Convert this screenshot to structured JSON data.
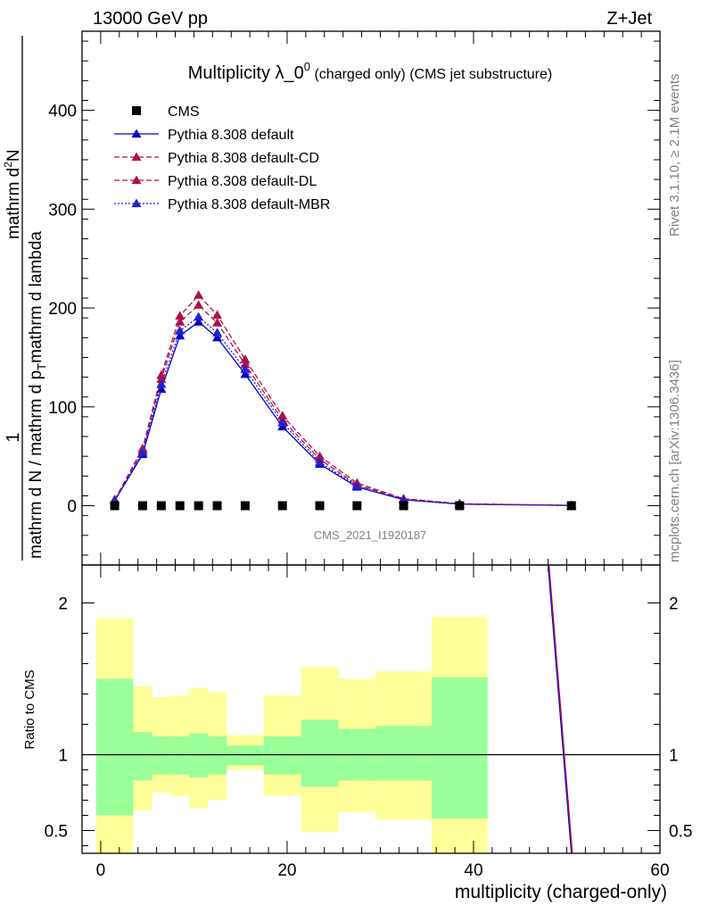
{
  "header": {
    "left": "13000 GeV pp",
    "right": "Z+Jet"
  },
  "side_labels": {
    "rivet": "Rivet 3.1.10, ≥ 2.1M events",
    "mcplots": "mcplots.cern.ch [arXiv:1306.3436]"
  },
  "watermark": "CMS_2021_I1920187",
  "chart_data": [
    {
      "type": "line",
      "title": "Multiplicity λ_0",
      "title_sup": "0",
      "title_extra": " (charged only) (CMS jet substructure)",
      "ylabel_num": "1",
      "ylabel_main": "mathrm d N / mathrm d p",
      "ylabel_t": "T",
      "ylabel_tail": "mathrm d lambda",
      "ylabel_sub_top": "mathrm d",
      "ylabel_sub_sup": "2",
      "ylabel_sub_n": "N",
      "xlim": [
        -2,
        60
      ],
      "ylim": [
        -60,
        480
      ],
      "yticks": [
        0,
        100,
        200,
        300,
        400
      ],
      "legend_position": "top-left",
      "series": [
        {
          "name": "CMS",
          "color": "#000000",
          "marker": "square",
          "x": [
            1.5,
            4.5,
            6.5,
            8.5,
            10.5,
            12.5,
            15.5,
            19.5,
            23.5,
            27.5,
            32.5,
            38.5,
            50.5
          ],
          "y": [
            0,
            0,
            0,
            0,
            0,
            0,
            0,
            0,
            0,
            0,
            0,
            0,
            0
          ]
        },
        {
          "name": "Pythia 8.308 default",
          "color": "#0000cc",
          "marker": "triangle",
          "dash": "",
          "x": [
            1.5,
            4.5,
            6.5,
            8.5,
            10.5,
            12.5,
            15.5,
            19.5,
            23.5,
            27.5,
            32.5,
            38.5,
            50.5
          ],
          "y": [
            5,
            52,
            118,
            172,
            186,
            170,
            133,
            80,
            42,
            19,
            6,
            1.5,
            0.3
          ]
        },
        {
          "name": "Pythia 8.308 default-CD",
          "color": "#b0104a",
          "marker": "triangle",
          "dash": "6,3",
          "x": [
            1.5,
            4.5,
            6.5,
            8.5,
            10.5,
            12.5,
            15.5,
            19.5,
            23.5,
            27.5,
            32.5,
            38.5,
            50.5
          ],
          "y": [
            6,
            58,
            132,
            192,
            213,
            193,
            148,
            91,
            50,
            23,
            7,
            2,
            0.3
          ]
        },
        {
          "name": "Pythia 8.308 default-DL",
          "color": "#b0104a",
          "marker": "triangle",
          "dash": "6,3",
          "x": [
            1.5,
            4.5,
            6.5,
            8.5,
            10.5,
            12.5,
            15.5,
            19.5,
            23.5,
            27.5,
            32.5,
            38.5,
            50.5
          ],
          "y": [
            6,
            56,
            128,
            186,
            203,
            185,
            143,
            87,
            47,
            21,
            7,
            2,
            0.3
          ]
        },
        {
          "name": "Pythia 8.308 default-MBR",
          "color": "#2222cc",
          "marker": "triangle",
          "dash": "2,2",
          "x": [
            1.5,
            4.5,
            6.5,
            8.5,
            10.5,
            12.5,
            15.5,
            19.5,
            23.5,
            27.5,
            32.5,
            38.5,
            50.5
          ],
          "y": [
            5,
            54,
            123,
            177,
            191,
            175,
            138,
            84,
            44,
            20,
            6,
            1.7,
            0.3
          ]
        }
      ]
    },
    {
      "type": "area",
      "ylabel": "Ratio to CMS",
      "xlabel": "multiplicity (charged-only)",
      "xlim": [
        -2,
        60
      ],
      "ylim": [
        0.35,
        2.25
      ],
      "xticks": [
        0,
        20,
        40,
        60
      ],
      "yticks": [
        0.5,
        1,
        2
      ],
      "reference": 1,
      "band_colors": {
        "outer": "#ffff99",
        "inner": "#99ff99"
      },
      "bins": [
        {
          "lo": -0.5,
          "hi": 3.5,
          "inner": [
            0.6,
            1.5
          ],
          "outer": [
            0.35,
            1.9
          ]
        },
        {
          "lo": 3.5,
          "hi": 5.5,
          "inner": [
            0.83,
            1.15
          ],
          "outer": [
            0.63,
            1.45
          ]
        },
        {
          "lo": 5.5,
          "hi": 7.5,
          "inner": [
            0.87,
            1.12
          ],
          "outer": [
            0.75,
            1.38
          ]
        },
        {
          "lo": 7.5,
          "hi": 9.5,
          "inner": [
            0.87,
            1.12
          ],
          "outer": [
            0.73,
            1.39
          ]
        },
        {
          "lo": 9.5,
          "hi": 11.5,
          "inner": [
            0.85,
            1.14
          ],
          "outer": [
            0.65,
            1.44
          ]
        },
        {
          "lo": 11.5,
          "hi": 13.5,
          "inner": [
            0.87,
            1.12
          ],
          "outer": [
            0.7,
            1.41
          ]
        },
        {
          "lo": 13.5,
          "hi": 17.5,
          "inner": [
            0.93,
            1.06
          ],
          "outer": [
            0.9,
            1.13
          ]
        },
        {
          "lo": 17.5,
          "hi": 21.5,
          "inner": [
            0.87,
            1.12
          ],
          "outer": [
            0.73,
            1.39
          ]
        },
        {
          "lo": 21.5,
          "hi": 25.5,
          "inner": [
            0.79,
            1.23
          ],
          "outer": [
            0.49,
            1.58
          ]
        },
        {
          "lo": 25.5,
          "hi": 29.5,
          "inner": [
            0.83,
            1.17
          ],
          "outer": [
            0.62,
            1.5
          ]
        },
        {
          "lo": 29.5,
          "hi": 35.5,
          "inner": [
            0.83,
            1.19
          ],
          "outer": [
            0.57,
            1.55
          ]
        },
        {
          "lo": 35.5,
          "hi": 41.5,
          "inner": [
            0.58,
            1.51
          ],
          "outer": [
            0.35,
            1.91
          ]
        }
      ],
      "series": [
        {
          "color": "#0000cc",
          "x": [
            48.0,
            50.5
          ],
          "y": [
            2.25,
            0.35
          ]
        },
        {
          "color": "#b0104a",
          "x": [
            48.1,
            50.6
          ],
          "y": [
            2.25,
            0.35
          ]
        }
      ]
    }
  ]
}
